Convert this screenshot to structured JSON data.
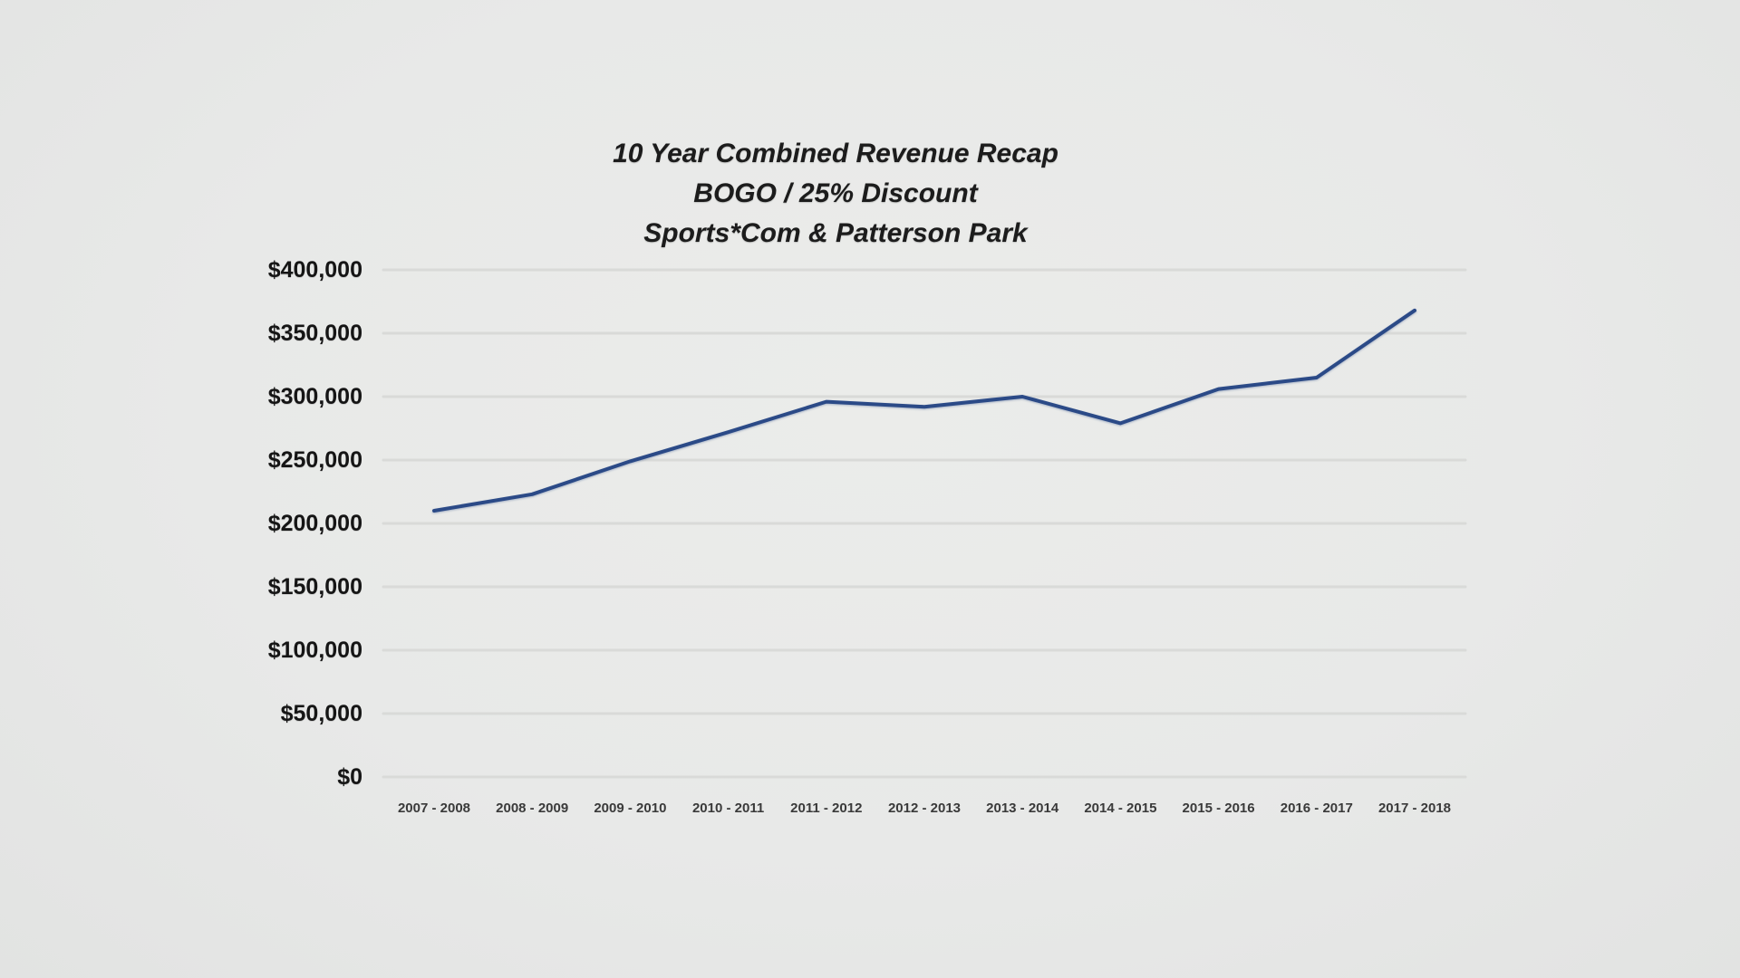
{
  "chart_data": {
    "type": "line",
    "title_lines": [
      "10 Year Combined Revenue Recap",
      "BOGO / 25% Discount",
      "Sports*Com & Patterson Park"
    ],
    "categories": [
      "2007 - 2008",
      "2008 - 2009",
      "2009 - 2010",
      "2010 - 2011",
      "2011 - 2012",
      "2012 - 2013",
      "2013 - 2014",
      "2014 - 2015",
      "2015 - 2016",
      "2016 - 2017",
      "2017 - 2018"
    ],
    "values": [
      210000,
      223000,
      249000,
      272000,
      296000,
      292000,
      300000,
      279000,
      306000,
      315000,
      368000
    ],
    "y_tick_labels": [
      "$400,000",
      "$350,000",
      "$300,000",
      "$250,000",
      "$200,000",
      "$150,000",
      "$100,000",
      "$50,000",
      "$0"
    ],
    "ylim": [
      0,
      400000
    ],
    "ytick_step": 50000,
    "grid": true,
    "legend": false,
    "xlabel": "",
    "ylabel": "",
    "colors": {
      "line": "#2b4a87",
      "gridline": "#d7d8d6",
      "background": "#e8e9e8",
      "title_text": "#1c1c1c",
      "ytick_text": "#151515",
      "xtick_text": "#3a3a3a"
    }
  }
}
